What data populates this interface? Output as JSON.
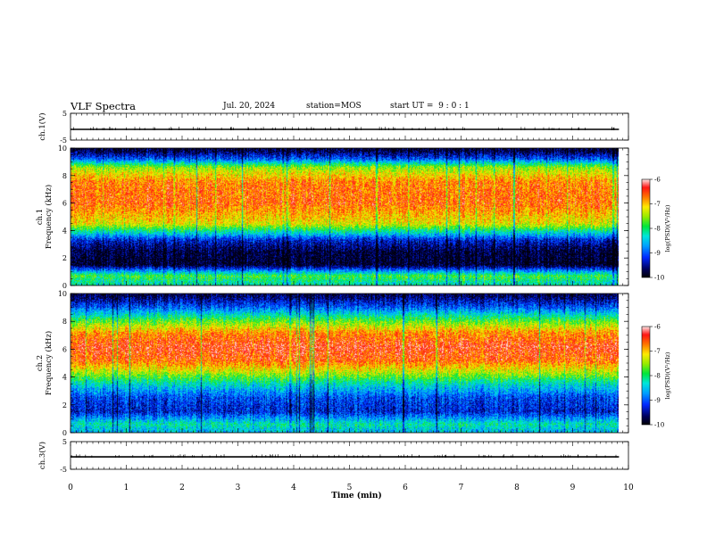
{
  "header": {
    "title": "VLF Spectra",
    "date": "Jul. 20, 2024",
    "station": "station=MOS",
    "start": "start UT =  9 : 0 : 1"
  },
  "chart_data": [
    {
      "type": "line",
      "panel": "ch1_voltage",
      "ylabel": "ch.1(V)",
      "ylim": [
        -5,
        5
      ],
      "y_ticks": [
        "5",
        "-5"
      ],
      "series": [
        {
          "x": [
            0,
            9.83
          ],
          "values": [
            -1.0,
            -1.0
          ]
        }
      ]
    },
    {
      "type": "heatmap",
      "panel": "ch1_spectrogram",
      "ylabel": "ch.1\nFrequency (kHz)",
      "ylim": [
        0,
        10
      ],
      "y_ticks": [
        "0",
        "2",
        "4",
        "6",
        "8",
        "10"
      ],
      "x_range_min": [
        0,
        9.83
      ],
      "colorbar": {
        "label": "log(PSD)(V²/Hz)",
        "ticks": [
          "-6",
          "-7",
          "-8",
          "-9",
          "-10"
        ],
        "range": [
          -10,
          -6
        ]
      },
      "approx_profile_freq_khz": [
        0.2,
        0.7,
        1.5,
        2.5,
        3.3,
        3.8,
        4.5,
        6,
        7.5,
        8.6,
        9.2,
        9.8
      ],
      "approx_profile_log_psd": [
        -8.2,
        -7.8,
        -9.9,
        -9.8,
        -9.3,
        -8.4,
        -7.2,
        -6.6,
        -6.7,
        -7.5,
        -9.0,
        -9.8
      ]
    },
    {
      "type": "heatmap",
      "panel": "ch2_spectrogram",
      "ylabel": "ch.2\nFrequency (kHz)",
      "ylim": [
        0,
        10
      ],
      "y_ticks": [
        "0",
        "2",
        "4",
        "6",
        "8",
        "10"
      ],
      "x_range_min": [
        0,
        9.83
      ],
      "colorbar": {
        "label": "log(PSD)(V²/Hz)",
        "ticks": [
          "-6",
          "-7",
          "-8",
          "-9",
          "-10"
        ],
        "range": [
          -10,
          -6
        ]
      },
      "approx_profile_freq_khz": [
        0.2,
        0.6,
        1.5,
        2.5,
        3.5,
        4.3,
        5.2,
        6.2,
        7.2,
        8.1,
        9.0,
        9.8
      ],
      "approx_profile_log_psd": [
        -8.5,
        -8.2,
        -9.3,
        -9.1,
        -8.3,
        -7.4,
        -6.6,
        -6.4,
        -6.8,
        -7.8,
        -9.0,
        -9.7
      ]
    },
    {
      "type": "line",
      "panel": "ch3_voltage",
      "ylabel": "ch.3(V)",
      "ylim": [
        -5,
        5
      ],
      "y_ticks": [
        "5",
        "-5"
      ],
      "series": [
        {
          "x": [
            0,
            9.83
          ],
          "values": [
            -0.5,
            -0.5
          ]
        }
      ]
    }
  ],
  "x_axis": {
    "label": "Time (min)",
    "range": [
      0,
      10
    ],
    "ticks": [
      "0",
      "1",
      "2",
      "3",
      "4",
      "5",
      "6",
      "7",
      "8",
      "9",
      "10"
    ]
  }
}
